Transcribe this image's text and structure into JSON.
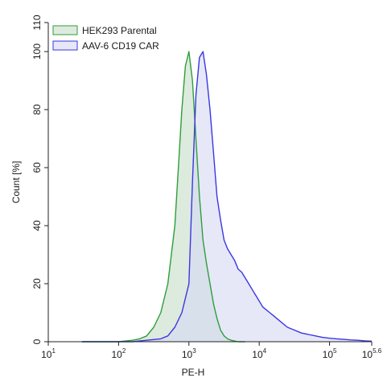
{
  "chart_data": {
    "type": "area",
    "xscale": "log",
    "xlim": [
      10,
      398107
    ],
    "ylim": [
      0,
      110
    ],
    "xlabel": "PE-H",
    "ylabel": "Count [%]",
    "grid": false,
    "legend_position": "top-left",
    "x_ticks": [
      {
        "value": 10,
        "base": "10",
        "exp": "1"
      },
      {
        "value": 100,
        "base": "10",
        "exp": "2"
      },
      {
        "value": 1000,
        "base": "10",
        "exp": "3"
      },
      {
        "value": 10000,
        "base": "10",
        "exp": "4"
      },
      {
        "value": 100000,
        "base": "10",
        "exp": "5"
      },
      {
        "value": 398107,
        "base": "10",
        "exp": "5.6"
      }
    ],
    "y_ticks": [
      0,
      20,
      40,
      60,
      80,
      100,
      110
    ],
    "series": [
      {
        "name": "HEK293 Parental",
        "color": "#2e9e3a",
        "fill": "#c6dcc8",
        "x": [
          30,
          60,
          100,
          158,
          200,
          251,
          316,
          398,
          501,
          631,
          708,
          794,
          891,
          1000,
          1122,
          1259,
          1413,
          1585,
          1778,
          1995,
          2239,
          2512,
          2818,
          3162,
          3548,
          3981,
          5012,
          6310
        ],
        "y": [
          0,
          0,
          0,
          0.5,
          1,
          2,
          5,
          10,
          20,
          40,
          60,
          80,
          95,
          100,
          90,
          70,
          50,
          35,
          27,
          20,
          13,
          8,
          4,
          2,
          1,
          0.5,
          0,
          0
        ]
      },
      {
        "name": "AAV-6 CD19 CAR",
        "color": "#3b36e0",
        "fill": "#d6d8f4",
        "x": [
          30,
          100,
          158,
          251,
          398,
          501,
          631,
          794,
          1000,
          1122,
          1259,
          1413,
          1585,
          1778,
          1995,
          2239,
          2512,
          2818,
          3162,
          3548,
          3981,
          4467,
          5012,
          5623,
          6310,
          7079,
          7943,
          8913,
          10000,
          11220,
          12589,
          14125,
          15849,
          17783,
          19953,
          25119,
          31623,
          39811,
          50119,
          63096,
          79433,
          100000,
          125893,
          158489,
          199526,
          251189,
          316228,
          398107
        ],
        "y": [
          0,
          0,
          0,
          0.5,
          1,
          2,
          5,
          10,
          20,
          55,
          85,
          98,
          100,
          92,
          80,
          65,
          50,
          42,
          35,
          32,
          30,
          28,
          25,
          24,
          22,
          20,
          18,
          16,
          14,
          12,
          11,
          10,
          9,
          8,
          7,
          5,
          4,
          3,
          2.5,
          2,
          1.5,
          1.2,
          1,
          0.8,
          0.6,
          0.5,
          0.3,
          0.2
        ]
      }
    ]
  }
}
